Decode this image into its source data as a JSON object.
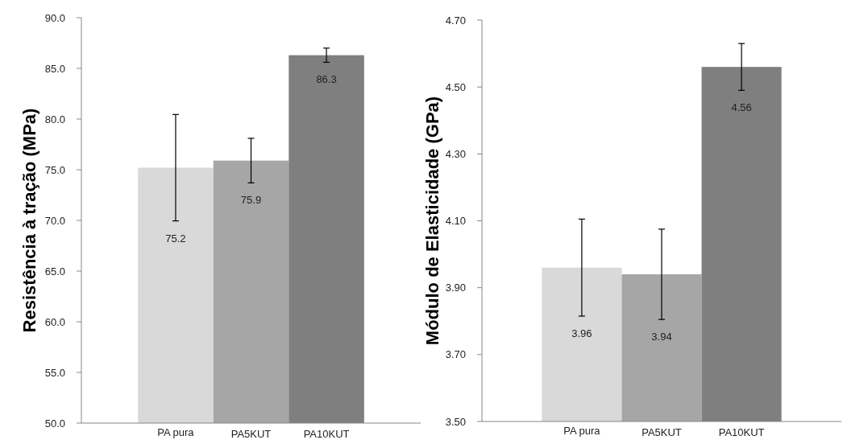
{
  "chart_data": [
    {
      "type": "bar",
      "ylabel": "Resistência à tração (MPa)",
      "categories": [
        "PA pura",
        "PA5KUT",
        "PA10KUT"
      ],
      "values": [
        75.2,
        75.9,
        86.3
      ],
      "colors": [
        "#d9d9d9",
        "#a6a6a6",
        "#7f7f7f"
      ],
      "errors": [
        5.25,
        2.2,
        0.7
      ],
      "data_labels": true,
      "ylim": [
        50,
        90
      ],
      "yticks": [
        {
          "value": 50,
          "label": "50.0"
        },
        {
          "value": 55,
          "label": "55.0"
        },
        {
          "value": 60,
          "label": "60.0"
        },
        {
          "value": 65,
          "label": "65.0"
        },
        {
          "value": 70,
          "label": "70.0"
        },
        {
          "value": 75,
          "label": "75.0"
        },
        {
          "value": 80,
          "label": "80.0"
        },
        {
          "value": 85,
          "label": "85.0"
        },
        {
          "value": 90,
          "label": "90.0"
        }
      ]
    },
    {
      "type": "bar",
      "ylabel": "Módulo de Elasticidade (GPa)",
      "categories": [
        "PA pura",
        "PA5KUT",
        "PA10KUT"
      ],
      "values": [
        3.96,
        3.94,
        4.56
      ],
      "colors": [
        "#d9d9d9",
        "#a6a6a6",
        "#7f7f7f"
      ],
      "errors": [
        0.145,
        0.135,
        0.07
      ],
      "data_labels": true,
      "ylim": [
        3.5,
        4.7
      ],
      "yticks": [
        {
          "value": 3.5,
          "label": "3.50"
        },
        {
          "value": 3.7,
          "label": "3.70"
        },
        {
          "value": 3.9,
          "label": "3.90"
        },
        {
          "value": 4.1,
          "label": "4.10"
        },
        {
          "value": 4.3,
          "label": "4.30"
        },
        {
          "value": 4.5,
          "label": "4.50"
        },
        {
          "value": 4.7,
          "label": "4.70"
        }
      ]
    }
  ]
}
